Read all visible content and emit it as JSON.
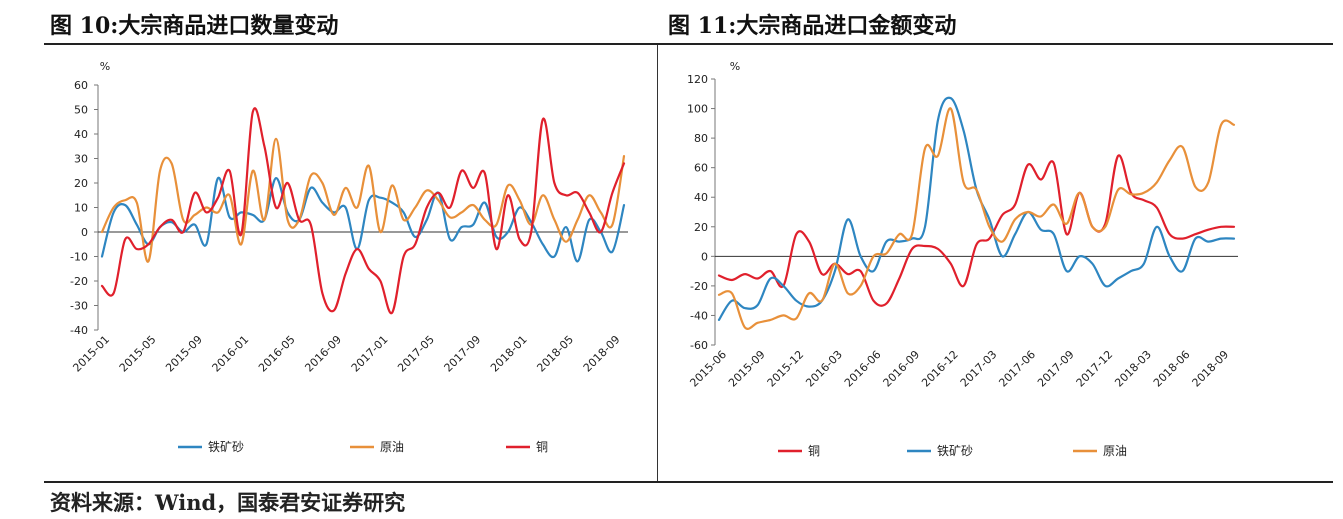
{
  "titles": {
    "left": "图 10:大宗商品进口数量变动",
    "right": "图 11:大宗商品进口金额变动"
  },
  "source": "资料来源：Wind，国泰君安证券研究",
  "chart_data": [
    {
      "type": "line",
      "title": "图 10:大宗商品进口数量变动",
      "ylabel": "%",
      "ylim": [
        -40,
        60
      ],
      "yticks": [
        -40,
        -30,
        -20,
        -10,
        0,
        10,
        20,
        30,
        40,
        50,
        60
      ],
      "x_start": "2015-01",
      "x_count": 46,
      "xtick_labels": [
        "2015-01",
        "2015-05",
        "2015-09",
        "2016-01",
        "2016-05",
        "2016-09",
        "2017-01",
        "2017-05",
        "2017-09",
        "2018-01",
        "2018-05",
        "2018-09"
      ],
      "legend_order": [
        "铁矿砂",
        "原油",
        "铜"
      ],
      "series": [
        {
          "name": "铁矿砂",
          "color": "#2e86c1",
          "values": [
            -10,
            8,
            11,
            3,
            -5,
            2,
            4,
            0,
            3,
            -5,
            22,
            6,
            8,
            7,
            5,
            22,
            8,
            5,
            18,
            12,
            8,
            10,
            -7,
            13,
            14,
            12,
            8,
            -2,
            5,
            16,
            -3,
            2,
            3,
            12,
            -2,
            0,
            10,
            4,
            -5,
            -10,
            2,
            -12,
            5,
            0,
            -8,
            11
          ]
        },
        {
          "name": "原油",
          "color": "#e8903a",
          "values": [
            0,
            10,
            13,
            12,
            -12,
            25,
            28,
            5,
            7,
            10,
            8,
            15,
            -5,
            25,
            5,
            38,
            5,
            5,
            23,
            20,
            7,
            18,
            10,
            27,
            0,
            19,
            5,
            10,
            17,
            13,
            6,
            8,
            11,
            5,
            3,
            19,
            13,
            3,
            15,
            5,
            -4,
            5,
            15,
            8,
            3,
            31
          ]
        },
        {
          "name": "铜",
          "color": "#e0202c",
          "values": [
            -22,
            -25,
            -3,
            -7,
            -5,
            2,
            5,
            0,
            16,
            8,
            14,
            25,
            -1,
            49,
            35,
            10,
            20,
            5,
            3,
            -25,
            -32,
            -17,
            -7,
            -15,
            -20,
            -33,
            -10,
            -5,
            10,
            16,
            10,
            25,
            18,
            24,
            -7,
            15,
            -3,
            0,
            46,
            20,
            15,
            16,
            8,
            0,
            16,
            28
          ]
        }
      ]
    },
    {
      "type": "line",
      "title": "图 11:大宗商品进口金额变动",
      "ylabel": "%",
      "ylim": [
        -60,
        120
      ],
      "yticks": [
        -60,
        -40,
        -20,
        0,
        20,
        40,
        60,
        80,
        100,
        120
      ],
      "x_start": "2015-06",
      "x_count": 41,
      "xtick_labels": [
        "2015-06",
        "2015-09",
        "2015-12",
        "2016-03",
        "2016-06",
        "2016-09",
        "2016-12",
        "2017-03",
        "2017-06",
        "2017-09",
        "2017-12",
        "2018-03",
        "2018-06",
        "2018-09"
      ],
      "legend_order": [
        "铜",
        "铁矿砂",
        "原油"
      ],
      "series": [
        {
          "name": "铜",
          "color": "#e0202c",
          "values": [
            -13,
            -16,
            -12,
            -15,
            -10,
            -20,
            15,
            10,
            -12,
            -5,
            -12,
            -10,
            -30,
            -32,
            -15,
            5,
            7,
            5,
            -5,
            -20,
            8,
            12,
            28,
            35,
            62,
            52,
            63,
            15,
            43,
            20,
            22,
            68,
            43,
            38,
            33,
            15,
            12,
            15,
            18,
            20,
            20
          ]
        },
        {
          "name": "铁矿砂",
          "color": "#2e86c1",
          "values": [
            -43,
            -30,
            -35,
            -33,
            -15,
            -20,
            -30,
            -34,
            -30,
            -10,
            25,
            0,
            -10,
            10,
            10,
            12,
            20,
            92,
            107,
            85,
            45,
            25,
            0,
            15,
            30,
            18,
            15,
            -10,
            0,
            -5,
            -20,
            -15,
            -10,
            -5,
            20,
            0,
            -10,
            12,
            10,
            12,
            12
          ]
        },
        {
          "name": "原油",
          "color": "#e8903a",
          "values": [
            -26,
            -25,
            -48,
            -45,
            -43,
            -40,
            -42,
            -25,
            -30,
            -5,
            -25,
            -20,
            0,
            2,
            15,
            15,
            73,
            68,
            100,
            50,
            45,
            20,
            10,
            25,
            30,
            27,
            35,
            22,
            43,
            20,
            20,
            45,
            42,
            43,
            50,
            65,
            74,
            47,
            50,
            89,
            89
          ]
        }
      ]
    }
  ]
}
